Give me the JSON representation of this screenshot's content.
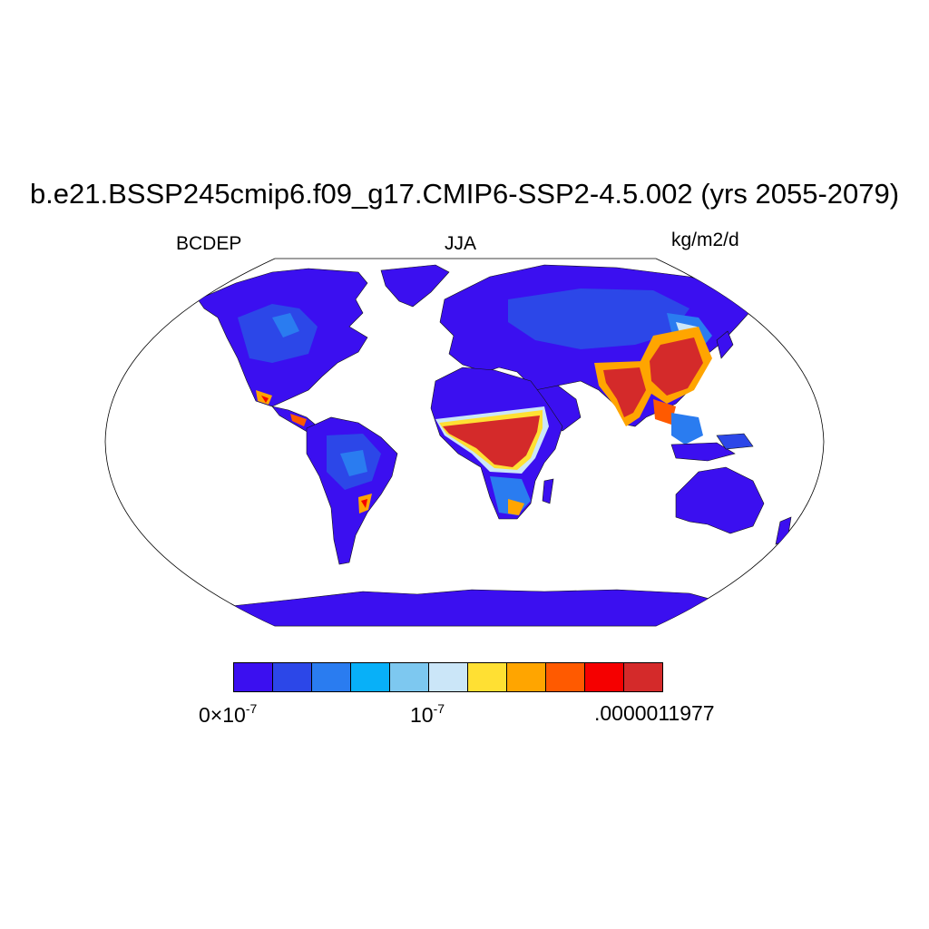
{
  "title": "b.e21.BSSP245cmip6.f09_g17.CMIP6-SSP2-4.5.002 (yrs 2055-2079)",
  "left_label": "BCDEP",
  "center_label": "JJA",
  "right_label": "kg/m2/d",
  "colorbar": {
    "colors": [
      "#3b0ff0",
      "#2c47e8",
      "#2a7cf0",
      "#08b0f8",
      "#7dc8f0",
      "#cbe6f8",
      "#ffe033",
      "#ffa500",
      "#ff5a00",
      "#f50000",
      "#d42a2a"
    ],
    "label_min_base": "0×10",
    "label_min_exp": "-7",
    "label_mid_base": "10",
    "label_mid_exp": "-7",
    "label_max": ".0000011977"
  },
  "map_colors": {
    "ocean": "#ffffff",
    "outline": "#000000"
  }
}
